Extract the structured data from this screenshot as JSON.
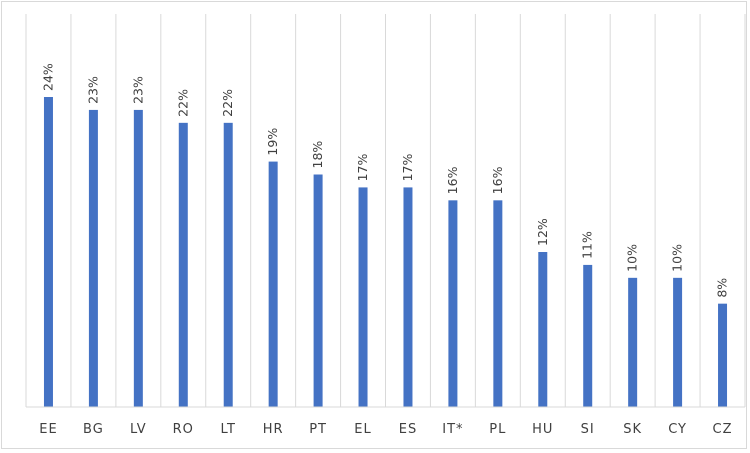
{
  "chart_data": {
    "type": "bar",
    "categories": [
      "EE",
      "BG",
      "LV",
      "RO",
      "LT",
      "HR",
      "PT",
      "EL",
      "ES",
      "IT*",
      "PL",
      "HU",
      "SI",
      "SK",
      "CY",
      "CZ"
    ],
    "values": [
      24,
      23,
      23,
      22,
      22,
      19,
      18,
      17,
      17,
      16,
      16,
      12,
      11,
      10,
      10,
      8
    ],
    "value_labels": [
      "24%",
      "23%",
      "23%",
      "22%",
      "22%",
      "19%",
      "18%",
      "17%",
      "17%",
      "16%",
      "16%",
      "12%",
      "11%",
      "10%",
      "10%",
      "8%"
    ],
    "ylim": [
      0,
      28
    ],
    "grid": "vertical",
    "bar_color": "#4472C4",
    "grid_color": "#d9d9d9",
    "legend": "none"
  }
}
